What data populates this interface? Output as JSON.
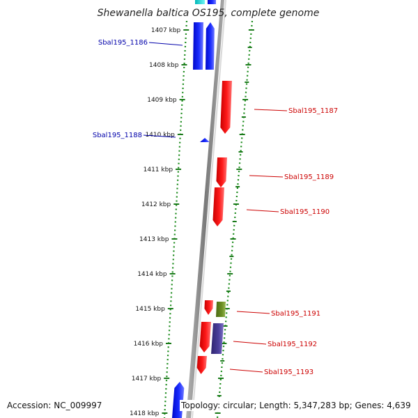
{
  "title": "Shewanella baltica OS195, complete genome",
  "accession": "Accession: NC_009997",
  "topology": "Topology: circular; Length: 5,347,283 bp; Genes: 4,639",
  "ticks": [
    "1407 kbp",
    "1408 kbp",
    "1409 kbp",
    "1410 kbp",
    "1411 kbp",
    "1412 kbp",
    "1413 kbp",
    "1414 kbp",
    "1415 kbp",
    "1416 kbp",
    "1417 kbp",
    "1418 kbp"
  ],
  "colors": {
    "forward_cds": "#0a14ff",
    "reverse_cds": "#ff0d0d",
    "other_feature_green": "#6b8f23",
    "other_feature_slate": "#4b3f9c",
    "forward_top": "#00e5e5",
    "backbone": "#8c8c8c",
    "tick_mark": "#1a7a1a",
    "forward_label": "#0000aa",
    "reverse_label": "#cc0000"
  },
  "genes": {
    "forward": [
      {
        "label": "Sbal195_1186"
      },
      {
        "label": "Sbal195_1188"
      }
    ],
    "reverse": [
      {
        "label": "Sbal195_1187"
      },
      {
        "label": "Sbal195_1189"
      },
      {
        "label": "Sbal195_1190"
      },
      {
        "label": "Sbal195_1191"
      },
      {
        "label": "Sbal195_1192"
      },
      {
        "label": "Sbal195_1193"
      }
    ]
  }
}
